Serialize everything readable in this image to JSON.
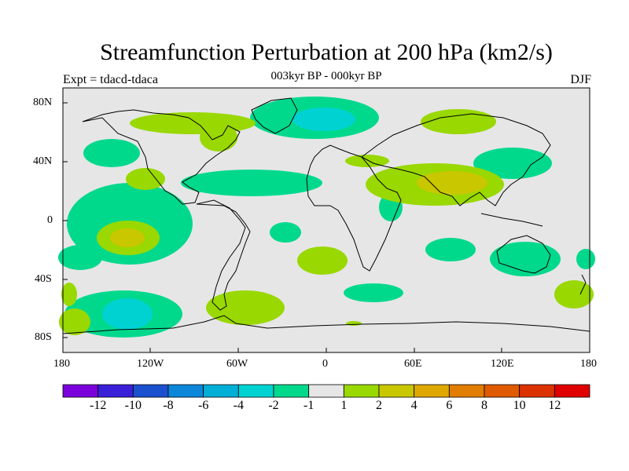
{
  "title": "Streamfunction Perturbation at 200 hPa (km2/s)",
  "subtitle": "003kyr BP - 000kyr BP",
  "left_label": "Expt = tdacd-tdaca",
  "right_label": "DJF",
  "map": {
    "lat_labels": [
      "80N",
      "40N",
      "0",
      "40S",
      "80S"
    ],
    "lon_labels": [
      "180",
      "120W",
      "60W",
      "0",
      "60E",
      "120E",
      "180"
    ],
    "colors": {
      "background": "#e6e6e6",
      "neg_1_to_2": "#00d98c",
      "neg_2_to_4": "#00d2d2",
      "pos_1_to_2": "#99d800",
      "pos_2_to_4": "#c9c700",
      "coast": "#000000"
    }
  },
  "colorbar": {
    "colors": [
      "#7b00dc",
      "#3a1fd9",
      "#1b50cf",
      "#0b86d9",
      "#00aed6",
      "#00d2d2",
      "#00d98c",
      "#e6e6e6",
      "#99d800",
      "#c9c700",
      "#dfa800",
      "#e17d00",
      "#e05a00",
      "#dc3200",
      "#e00000"
    ],
    "labels": [
      "-12",
      "-10",
      "-8",
      "-6",
      "-4",
      "-2",
      "-1",
      "1",
      "2",
      "4",
      "6",
      "8",
      "10",
      "12"
    ]
  }
}
